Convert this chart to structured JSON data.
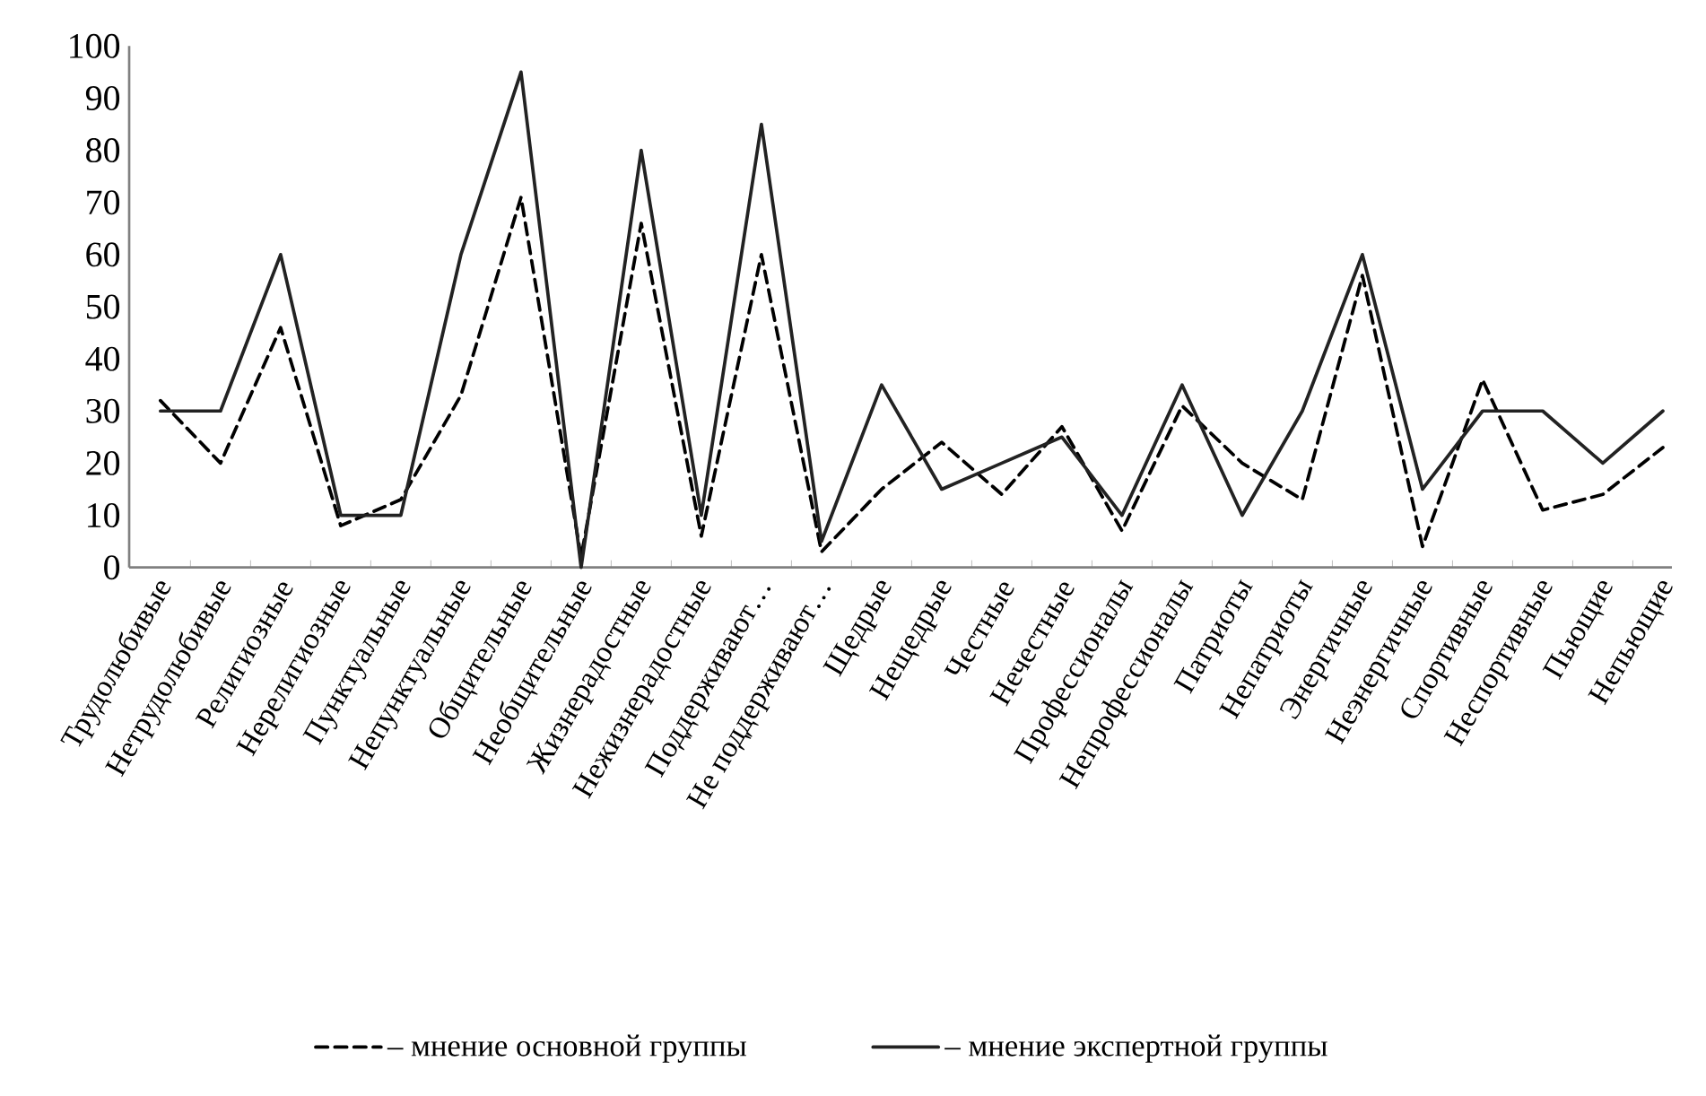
{
  "chart_data": {
    "type": "line",
    "categories": [
      "Трудолюбивые",
      "Нетрудолюбивые",
      "Религиозные",
      "Нерелигиозные",
      "Пунктуальные",
      "Непунктуальные",
      "Общительные",
      "Необщительные",
      "Жизнерадостные",
      "Нежизнерадостные",
      "Поддерживают…",
      "Не поддерживают…",
      "Щедрые",
      "Нещедрые",
      "Честные",
      "Нечестные",
      "Профессионалы",
      "Непрофессионалы",
      "Патриоты",
      "Непатриоты",
      "Энергичные",
      "Неэнергичные",
      "Спортивные",
      "Неспортивные",
      "Пьющие",
      "Непьющие"
    ],
    "series": [
      {
        "name": "– мнение основной группы",
        "color": "#000000",
        "line_style": "dashed",
        "values": [
          32,
          20,
          46,
          8,
          13,
          33,
          71,
          2,
          66,
          6,
          60,
          3,
          15,
          24,
          14,
          27,
          7,
          31,
          20,
          13,
          56,
          4,
          36,
          11,
          14,
          23
        ]
      },
      {
        "name": "– мнение экспертной группы",
        "color": "#222222",
        "line_style": "solid",
        "values": [
          30,
          30,
          60,
          10,
          10,
          60,
          95,
          0,
          80,
          10,
          85,
          5,
          35,
          15,
          20,
          25,
          10,
          35,
          10,
          30,
          60,
          15,
          30,
          30,
          20,
          30
        ]
      }
    ],
    "ylim": [
      0,
      100
    ],
    "yticks": [
      0,
      10,
      20,
      30,
      40,
      50,
      60,
      70,
      80,
      90,
      100
    ],
    "grid": false,
    "legend": "bottom",
    "marker": "none"
  }
}
